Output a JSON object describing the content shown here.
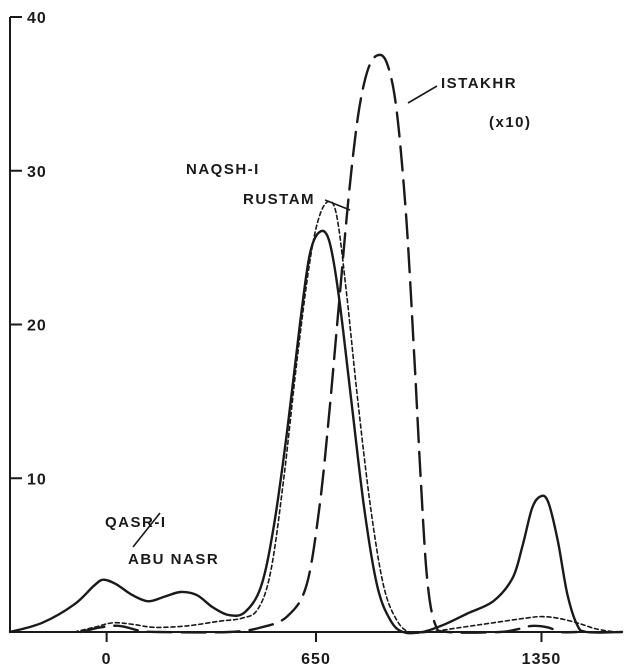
{
  "chart_data": {
    "type": "line",
    "title": "",
    "xlabel": "",
    "ylabel": "",
    "xlim": [
      -300,
      1600
    ],
    "ylim": [
      0,
      40
    ],
    "x_ticks": [
      {
        "value": 0,
        "label": "0"
      },
      {
        "value": 650,
        "label": "650"
      },
      {
        "value": 1350,
        "label": "1350"
      }
    ],
    "y_ticks": [
      {
        "value": 10,
        "label": "10"
      },
      {
        "value": 20,
        "label": "20"
      },
      {
        "value": 30,
        "label": "30"
      },
      {
        "value": 40,
        "label": "40"
      }
    ],
    "grid": false,
    "series": [
      {
        "label_lines": [
          "QASR-I",
          "ABU  NASR"
        ],
        "style": "solid",
        "points": [
          [
            -300,
            0
          ],
          [
            -200,
            0.6
          ],
          [
            -100,
            1.8
          ],
          [
            -40,
            3.0
          ],
          [
            -10,
            3.4
          ],
          [
            30,
            3.1
          ],
          [
            80,
            2.4
          ],
          [
            130,
            2.0
          ],
          [
            180,
            2.3
          ],
          [
            230,
            2.6
          ],
          [
            280,
            2.4
          ],
          [
            330,
            1.6
          ],
          [
            380,
            1.1
          ],
          [
            430,
            1.3
          ],
          [
            480,
            3.0
          ],
          [
            520,
            7.0
          ],
          [
            560,
            13.0
          ],
          [
            600,
            20.0
          ],
          [
            630,
            24.5
          ],
          [
            660,
            26.0
          ],
          [
            690,
            25.5
          ],
          [
            720,
            22.0
          ],
          [
            760,
            15.0
          ],
          [
            800,
            8.0
          ],
          [
            840,
            3.0
          ],
          [
            880,
            0.8
          ],
          [
            920,
            0.0
          ],
          [
            980,
            0.0
          ],
          [
            1050,
            0.5
          ],
          [
            1120,
            1.2
          ],
          [
            1200,
            2.0
          ],
          [
            1260,
            3.5
          ],
          [
            1290,
            5.5
          ],
          [
            1320,
            8.0
          ],
          [
            1345,
            8.8
          ],
          [
            1370,
            8.5
          ],
          [
            1400,
            6.0
          ],
          [
            1430,
            2.5
          ],
          [
            1460,
            0.5
          ],
          [
            1490,
            0.0
          ],
          [
            1600,
            0.0
          ]
        ]
      },
      {
        "label_lines": [
          "NAQSH-I",
          "RUSTAM"
        ],
        "style": "dotted",
        "points": [
          [
            -100,
            0
          ],
          [
            -40,
            0.3
          ],
          [
            20,
            0.6
          ],
          [
            80,
            0.5
          ],
          [
            150,
            0.3
          ],
          [
            250,
            0.4
          ],
          [
            350,
            0.7
          ],
          [
            420,
            0.9
          ],
          [
            470,
            1.5
          ],
          [
            510,
            4.0
          ],
          [
            550,
            10.0
          ],
          [
            590,
            17.5
          ],
          [
            630,
            24.0
          ],
          [
            660,
            27.0
          ],
          [
            690,
            28.0
          ],
          [
            715,
            27.0
          ],
          [
            745,
            22.0
          ],
          [
            780,
            15.0
          ],
          [
            820,
            8.0
          ],
          [
            860,
            3.0
          ],
          [
            900,
            0.8
          ],
          [
            940,
            0.0
          ],
          [
            1000,
            0.0
          ],
          [
            1100,
            0.3
          ],
          [
            1200,
            0.6
          ],
          [
            1300,
            0.9
          ],
          [
            1350,
            1.0
          ],
          [
            1400,
            0.9
          ],
          [
            1460,
            0.6
          ],
          [
            1520,
            0.2
          ],
          [
            1580,
            0.0
          ]
        ]
      },
      {
        "label_lines": [
          "ISTAKHR",
          "(x10)"
        ],
        "style": "dashed",
        "points": [
          [
            -80,
            0
          ],
          [
            -20,
            0.3
          ],
          [
            40,
            0.4
          ],
          [
            100,
            0.1
          ],
          [
            160,
            0.0
          ],
          [
            380,
            0.0
          ],
          [
            480,
            0.3
          ],
          [
            560,
            1.0
          ],
          [
            620,
            3.0
          ],
          [
            660,
            8.0
          ],
          [
            690,
            14.0
          ],
          [
            720,
            21.0
          ],
          [
            750,
            28.0
          ],
          [
            780,
            33.5
          ],
          [
            810,
            36.5
          ],
          [
            840,
            37.5
          ],
          [
            870,
            37.0
          ],
          [
            900,
            34.0
          ],
          [
            930,
            27.0
          ],
          [
            955,
            18.0
          ],
          [
            975,
            10.0
          ],
          [
            995,
            3.5
          ],
          [
            1020,
            0.5
          ],
          [
            1060,
            0.0
          ],
          [
            1220,
            0.0
          ],
          [
            1280,
            0.2
          ],
          [
            1320,
            0.4
          ],
          [
            1370,
            0.3
          ],
          [
            1410,
            0.0
          ],
          [
            1460,
            0.0
          ]
        ]
      }
    ]
  }
}
